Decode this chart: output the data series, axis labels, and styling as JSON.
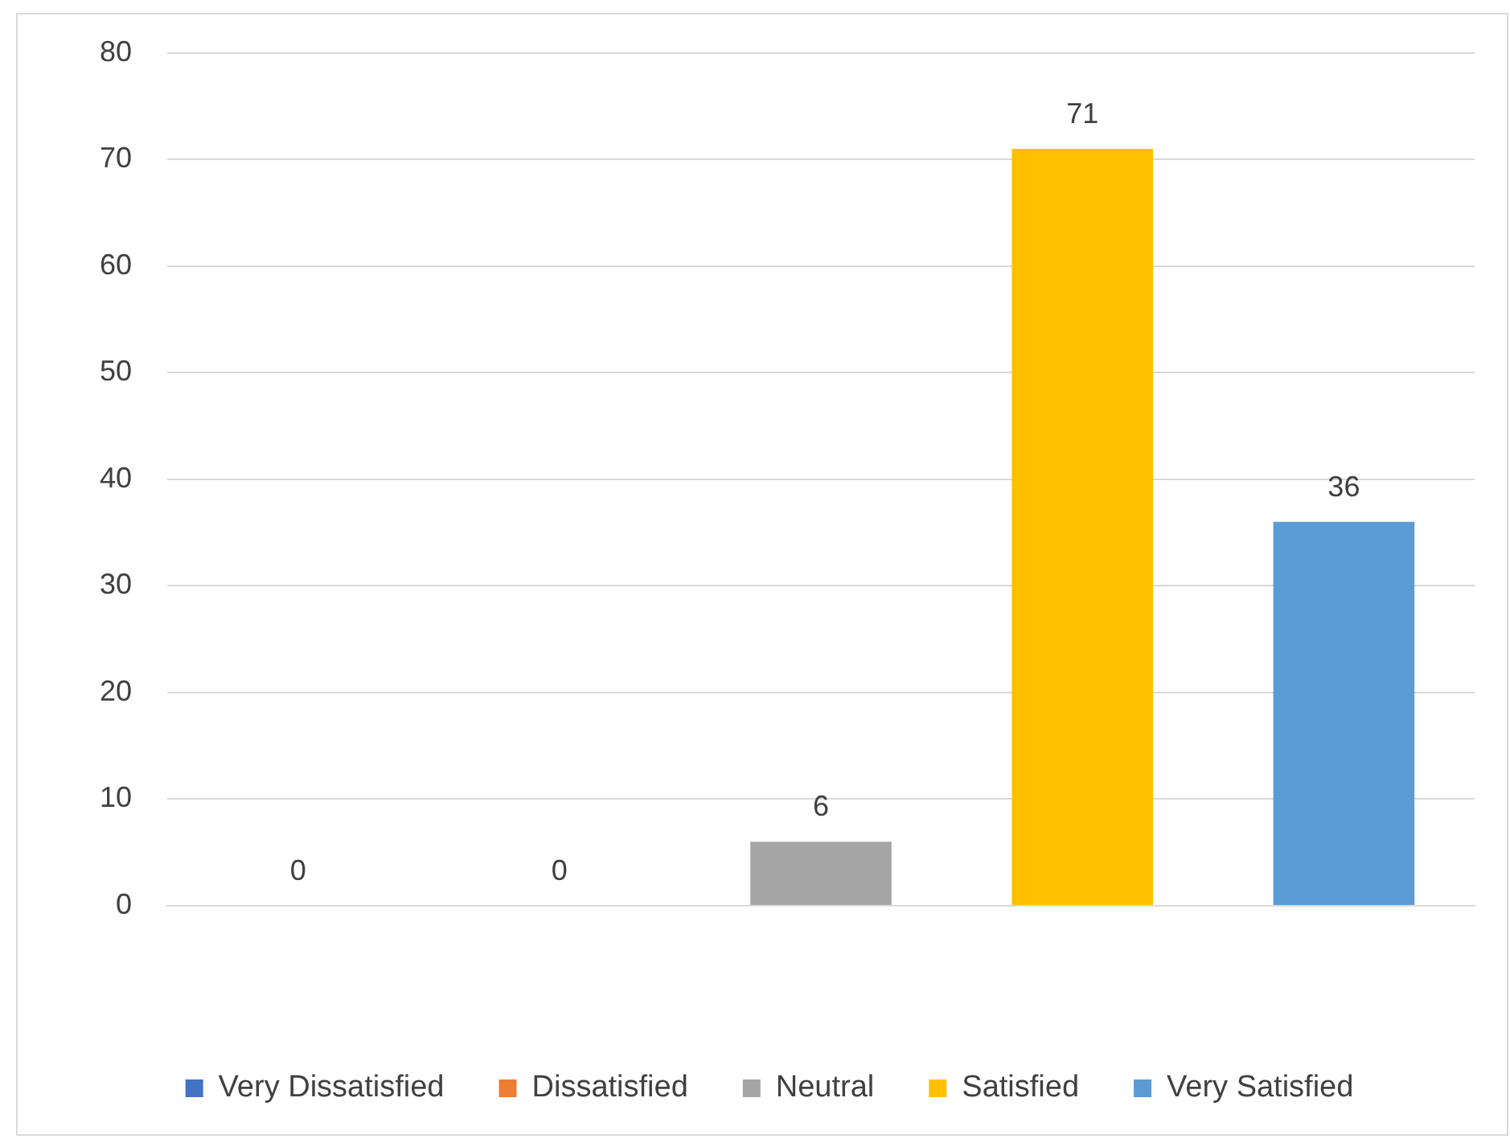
{
  "chart_data": {
    "type": "bar",
    "categories": [
      null,
      null,
      null,
      null,
      null
    ],
    "series": [
      {
        "name": "Very Dissatisfied",
        "color": "#4472c4",
        "values": [
          0,
          null,
          null,
          null,
          null
        ]
      },
      {
        "name": "Dissatisfied",
        "color": "#ed7d31",
        "values": [
          null,
          0,
          null,
          null,
          null
        ]
      },
      {
        "name": "Neutral",
        "color": "#a5a5a5",
        "values": [
          null,
          null,
          6,
          null,
          null
        ]
      },
      {
        "name": "Satisfied",
        "color": "#ffc000",
        "values": [
          null,
          null,
          null,
          71,
          null
        ]
      },
      {
        "name": "Very Satisfied",
        "color": "#5b9bd5",
        "values": [
          null,
          null,
          null,
          null,
          36
        ]
      }
    ],
    "ylim": [
      0,
      80
    ],
    "yticks": [
      0,
      10,
      20,
      30,
      40,
      50,
      60,
      70,
      80
    ],
    "grid": "y",
    "legend": "bottom",
    "data_labels": true
  }
}
